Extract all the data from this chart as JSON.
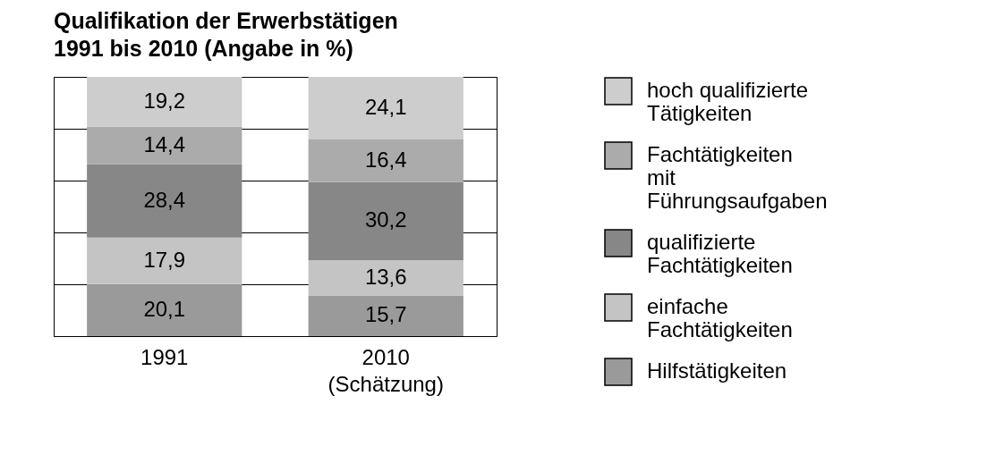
{
  "chart_data": {
    "type": "bar",
    "title": "Qualifikation der Erwerbstätigen",
    "subtitle": "1991 bis 2010 (Angabe in %)",
    "categories": [
      "1991",
      "2010\n(Schätzung)"
    ],
    "stacked": true,
    "legend": "right",
    "grid": "y",
    "tick_labels": "x",
    "series": [
      {
        "name": "Hilfstätigkeiten",
        "color": "#9a9a9a",
        "values": [
          20.1,
          15.7
        ],
        "value_labels": [
          "20,1",
          "15,7"
        ]
      },
      {
        "name": "einfache Fachtätigkeiten",
        "color": "#c4c4c4",
        "values": [
          17.9,
          13.6
        ],
        "value_labels": [
          "17,9",
          "13,6"
        ]
      },
      {
        "name": "qualifizierte Fachtätigkeiten",
        "color": "#878787",
        "values": [
          28.4,
          30.2
        ],
        "value_labels": [
          "28,4",
          "30,2"
        ]
      },
      {
        "name": "Fachtätigkeiten mit Führungsaufgaben",
        "color": "#ababab",
        "values": [
          14.4,
          16.4
        ],
        "value_labels": [
          "14,4",
          "16,4"
        ]
      },
      {
        "name": "hoch qualifizierte Tätigkeiten",
        "color": "#cdcdcd",
        "values": [
          19.2,
          24.1
        ],
        "value_labels": [
          "19,2",
          "24,1"
        ]
      }
    ]
  }
}
